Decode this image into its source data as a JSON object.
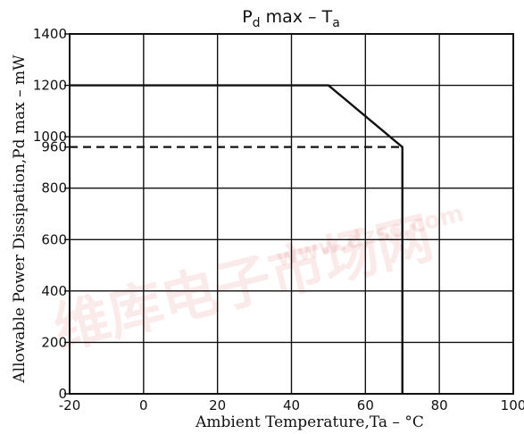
{
  "chart_data": {
    "type": "line",
    "title": "Pd max  –  Ta",
    "title_main": "P",
    "title_sub": "d",
    "title_rest": " max   –   T",
    "title_sub2": "a",
    "xlabel": "Ambient Temperature,Ta – °C",
    "ylabel": "Allowable Power Dissipation,Pd max – mW",
    "xlim": [
      -20,
      100
    ],
    "ylim": [
      0,
      1400
    ],
    "x_ticks": [
      -20,
      0,
      20,
      40,
      60,
      80,
      100
    ],
    "x_tick_labels": [
      "-20",
      "0",
      "20",
      "40",
      "60",
      "80",
      "100"
    ],
    "y_ticks": [
      0,
      200,
      400,
      600,
      800,
      960,
      1000,
      1200,
      1400
    ],
    "y_tick_labels": [
      "0",
      "200",
      "400",
      "600",
      "800",
      "960",
      "1000",
      "1200",
      "1400"
    ],
    "grid": true,
    "series": [
      {
        "style": "solid",
        "x": [
          -20,
          50,
          70,
          70
        ],
        "y": [
          1200,
          1200,
          960,
          0
        ]
      },
      {
        "style": "dashed",
        "x": [
          -20,
          70
        ],
        "y": [
          960,
          960
        ]
      }
    ]
  },
  "watermark": {
    "text_cn": "维库电子市场网",
    "text_url": "www.dzsc.com",
    "color": "#d02020"
  }
}
